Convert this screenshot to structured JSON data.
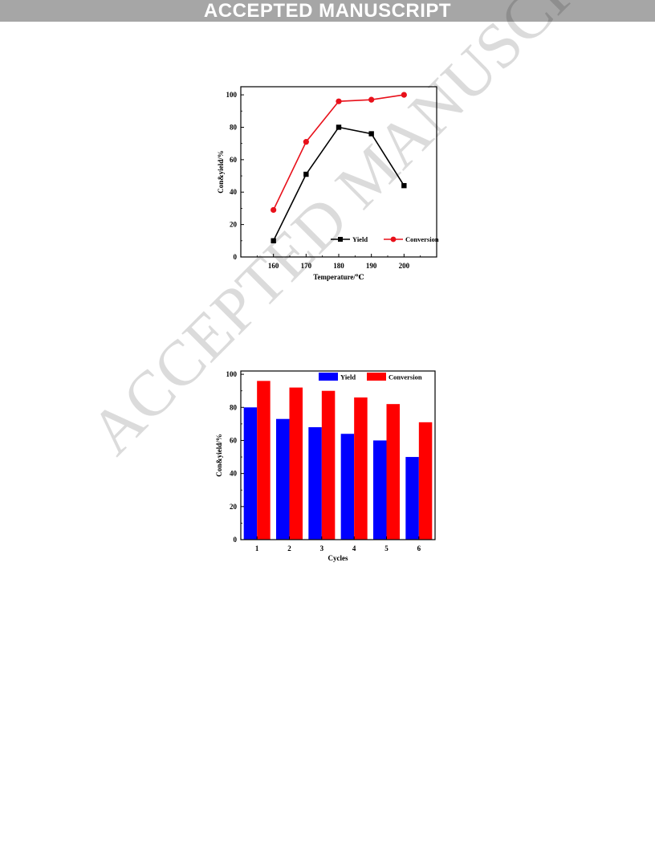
{
  "banner": {
    "text": "ACCEPTED MANUSCRIPT"
  },
  "watermark": {
    "text": "ACCEPTED MANUSCRIPT"
  },
  "chart_data": [
    {
      "type": "line",
      "title": "",
      "xlabel": "Temperature/℃",
      "ylabel": "Con&yield/%",
      "x": [
        160,
        170,
        180,
        190,
        200
      ],
      "xlim": [
        150,
        210
      ],
      "ylim": [
        0,
        105
      ],
      "y_ticks": [
        0,
        20,
        40,
        60,
        80,
        100
      ],
      "x_ticks": [
        160,
        170,
        180,
        190,
        200
      ],
      "grid": false,
      "legend_position": "bottom-right",
      "series": [
        {
          "name": "Yield",
          "values": [
            10,
            51,
            80,
            76,
            44
          ],
          "color": "#000000",
          "marker": "square"
        },
        {
          "name": "Conversion",
          "values": [
            29,
            71,
            96,
            97,
            100
          ],
          "color": "#e8101a",
          "marker": "circle"
        }
      ]
    },
    {
      "type": "bar",
      "title": "",
      "xlabel": "Cycles",
      "ylabel": "Con&yield/%",
      "categories": [
        "1",
        "2",
        "3",
        "4",
        "5",
        "6"
      ],
      "ylim": [
        0,
        102
      ],
      "y_ticks": [
        0,
        20,
        40,
        60,
        80,
        100
      ],
      "grid": false,
      "legend_position": "top-right",
      "series": [
        {
          "name": "Yield",
          "values": [
            80,
            73,
            68,
            64,
            60,
            50
          ],
          "color": "#0000ff"
        },
        {
          "name": "Conversion",
          "values": [
            96,
            92,
            90,
            86,
            82,
            71
          ],
          "color": "#ff0000"
        }
      ]
    }
  ]
}
